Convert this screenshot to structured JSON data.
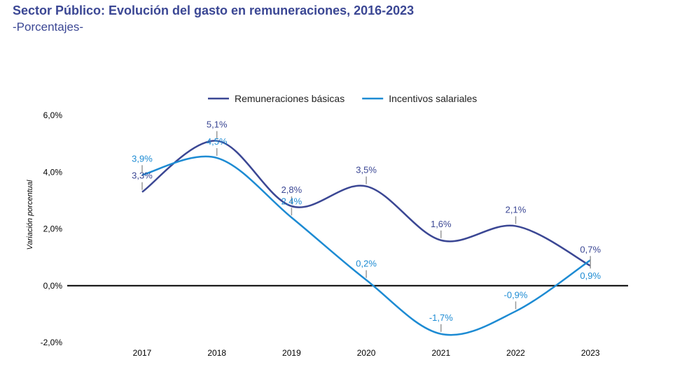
{
  "title": "Sector Público: Evolución del gasto en remuneraciones, 2016-2023",
  "subtitle": "-Porcentajes-",
  "chart_data": {
    "type": "line",
    "categories": [
      "2017",
      "2018",
      "2019",
      "2020",
      "2021",
      "2022",
      "2023"
    ],
    "ylabel": "Variación porcentual",
    "ylim": [
      -2,
      6
    ],
    "yticks": [
      -2,
      0,
      2,
      4,
      6
    ],
    "ytick_labels": [
      "-2,0%",
      "0,0%",
      "2,0%",
      "4,0%",
      "6,0%"
    ],
    "legend_position": "top-center",
    "series": [
      {
        "name": "Remuneraciones básicas",
        "color": "#3b4794",
        "values": [
          3.3,
          5.1,
          2.8,
          3.5,
          1.6,
          2.1,
          0.7
        ],
        "labels": [
          "3,3%",
          "5,1%",
          "2,8%",
          "3,5%",
          "1,6%",
          "2,1%",
          "0,7%"
        ]
      },
      {
        "name": "Incentivos salariales",
        "color": "#1d8bd3",
        "values": [
          3.9,
          4.5,
          2.4,
          0.2,
          -1.7,
          -0.9,
          0.9
        ],
        "labels": [
          "3,9%",
          "4,5%",
          "2,4%",
          "0,2%",
          "-1,7%",
          "-0,9%",
          "0,9%"
        ]
      }
    ]
  }
}
